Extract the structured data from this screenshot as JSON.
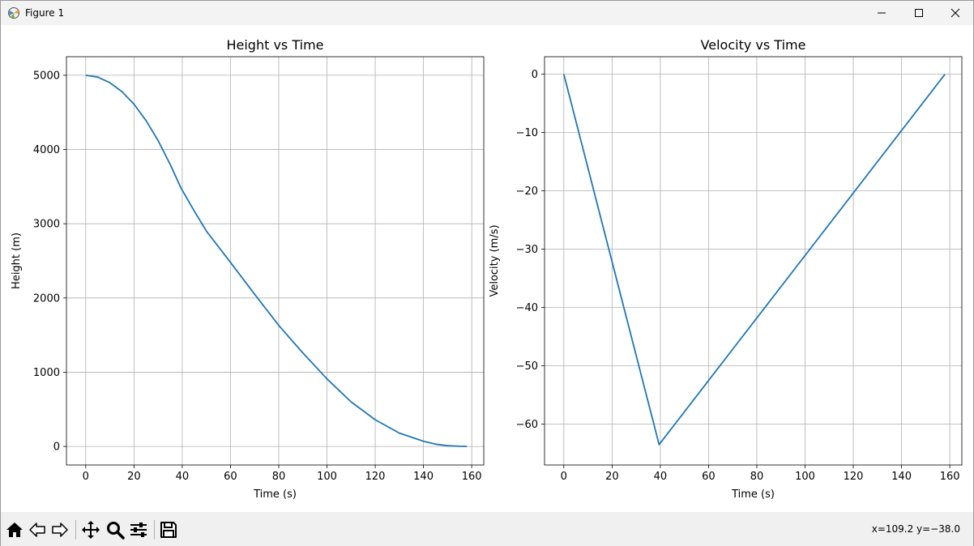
{
  "window": {
    "title": "Figure 1",
    "icon": "matplotlib-icon",
    "controls": [
      "minimize-icon",
      "maximize-icon",
      "close-icon"
    ]
  },
  "toolbar": {
    "buttons": [
      "home-icon",
      "back-icon",
      "forward-icon",
      "pan-icon",
      "zoom-icon",
      "configure-subplots-icon",
      "save-icon"
    ],
    "coords": "x=109.2 y=−38.0"
  },
  "colors": {
    "line": "#1f77b4",
    "grid": "#b0b0b0"
  },
  "chart_data": [
    {
      "type": "line",
      "title": "Height vs Time",
      "xlabel": "Time (s)",
      "ylabel": "Height (m)",
      "xlim": [
        -8,
        165
      ],
      "ylim": [
        -250,
        5250
      ],
      "xticks": [
        0,
        20,
        40,
        60,
        80,
        100,
        120,
        140,
        160
      ],
      "yticks": [
        0,
        1000,
        2000,
        3000,
        4000,
        5000
      ],
      "grid": true,
      "x": [
        0,
        5,
        10,
        15,
        20,
        25,
        30,
        35,
        39.5,
        45,
        50,
        60,
        70,
        80,
        90,
        100,
        110,
        120,
        130,
        140,
        145,
        150,
        155,
        158
      ],
      "y": [
        5000,
        4975,
        4900,
        4780,
        4610,
        4390,
        4120,
        3800,
        3480,
        3170,
        2900,
        2480,
        2050,
        1630,
        1260,
        910,
        600,
        360,
        180,
        70,
        30,
        10,
        2,
        0
      ]
    },
    {
      "type": "line",
      "title": "Velocity vs Time",
      "xlabel": "Time (s)",
      "ylabel": "Velocity (m/s)",
      "xlim": [
        -8,
        165
      ],
      "ylim": [
        -67,
        3
      ],
      "xticks": [
        0,
        20,
        40,
        60,
        80,
        100,
        120,
        140,
        160
      ],
      "yticks": [
        0,
        -10,
        -20,
        -30,
        -40,
        -50,
        -60
      ],
      "grid": true,
      "x": [
        0,
        39.5,
        158
      ],
      "y": [
        0,
        -63.5,
        0
      ]
    }
  ]
}
